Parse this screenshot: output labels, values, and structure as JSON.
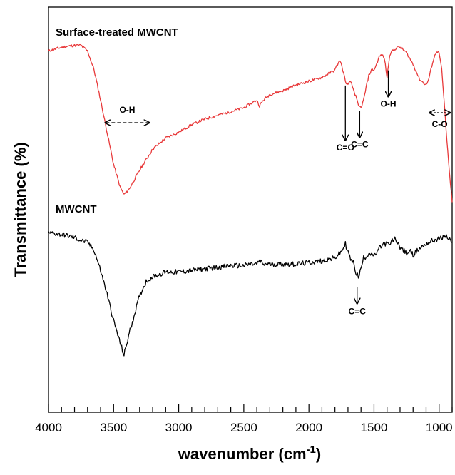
{
  "chart_data": {
    "type": "line",
    "xlabel": "wavenumber (cm",
    "xlabel_sup": "-1",
    "xlabel_close": ")",
    "ylabel": "Transmittance (%)",
    "xlim": [
      4000,
      900
    ],
    "x_reversed": true,
    "y_units": "arbitrary (offset traces, no y tick labels)",
    "x_ticks": [
      4000,
      3500,
      3000,
      2500,
      2000,
      1500,
      1000
    ],
    "grid": false,
    "series": [
      {
        "name": "Surface-treated MWCNT",
        "color": "#e8393a",
        "x": [
          4000,
          3900,
          3800,
          3750,
          3700,
          3650,
          3600,
          3550,
          3500,
          3450,
          3420,
          3380,
          3300,
          3200,
          3100,
          3000,
          2900,
          2800,
          2700,
          2600,
          2500,
          2450,
          2400,
          2380,
          2350,
          2300,
          2200,
          2100,
          2000,
          1900,
          1850,
          1800,
          1780,
          1760,
          1740,
          1720,
          1700,
          1680,
          1660,
          1640,
          1620,
          1600,
          1580,
          1560,
          1540,
          1520,
          1500,
          1480,
          1460,
          1440,
          1420,
          1400,
          1390,
          1380,
          1360,
          1340,
          1320,
          1300,
          1280,
          1250,
          1200,
          1150,
          1100,
          1080,
          1050,
          1020,
          1000,
          980,
          960,
          940,
          920,
          900
        ],
        "y": [
          90,
          92,
          93,
          93,
          90,
          80,
          64,
          47,
          30,
          18,
          14,
          17,
          27,
          38,
          44,
          47,
          51,
          54,
          56,
          58,
          60,
          62,
          64,
          61,
          64,
          67,
          69,
          72,
          74,
          76,
          78,
          80,
          83,
          85,
          80,
          74,
          72,
          74,
          70,
          66,
          61,
          60,
          64,
          71,
          77,
          80,
          80,
          83,
          87,
          88,
          86,
          76,
          82,
          88,
          90,
          91,
          92,
          92,
          91,
          89,
          83,
          75,
          72,
          75,
          84,
          90,
          89,
          80,
          62,
          42,
          25,
          10
        ]
      },
      {
        "name": "MWCNT",
        "color": "#000000",
        "x": [
          4000,
          3900,
          3800,
          3750,
          3700,
          3650,
          3600,
          3550,
          3500,
          3450,
          3420,
          3380,
          3300,
          3250,
          3200,
          3100,
          3000,
          2900,
          2800,
          2700,
          2600,
          2500,
          2450,
          2400,
          2380,
          2350,
          2300,
          2200,
          2100,
          2000,
          1900,
          1800,
          1750,
          1720,
          1700,
          1680,
          1660,
          1640,
          1620,
          1600,
          1580,
          1560,
          1540,
          1520,
          1500,
          1480,
          1460,
          1440,
          1420,
          1400,
          1380,
          1360,
          1340,
          1320,
          1300,
          1280,
          1250,
          1220,
          1200,
          1150,
          1100,
          1050,
          1000,
          950,
          900
        ],
        "y": [
          88,
          87,
          85,
          83,
          82,
          77,
          64,
          49,
          32,
          18,
          10,
          24,
          48,
          57,
          60,
          63,
          63,
          64,
          65,
          66,
          67,
          67,
          68,
          68,
          70,
          68,
          68,
          68,
          68,
          69,
          70,
          72,
          76,
          81,
          76,
          71,
          69,
          63,
          60,
          65,
          72,
          73,
          75,
          75,
          73,
          75,
          78,
          80,
          81,
          81,
          80,
          83,
          84,
          82,
          79,
          77,
          75,
          76,
          74,
          78,
          81,
          83,
          84,
          86,
          82
        ]
      }
    ],
    "annotations": {
      "treated": [
        {
          "label": "O-H",
          "kind": "range-arrow",
          "x_from": 3560,
          "x_to": 3230
        },
        {
          "label": "C=O",
          "kind": "down-arrow",
          "x": 1720
        },
        {
          "label": "C=C",
          "kind": "down-arrow",
          "x": 1610
        },
        {
          "label": "O-H",
          "kind": "down-arrow",
          "x": 1390
        },
        {
          "label": "C-O",
          "kind": "range-arrow",
          "x_from": 1070,
          "x_to": 920
        }
      ],
      "pristine": [
        {
          "label": "C=C",
          "kind": "down-arrow",
          "x": 1630
        }
      ]
    }
  }
}
